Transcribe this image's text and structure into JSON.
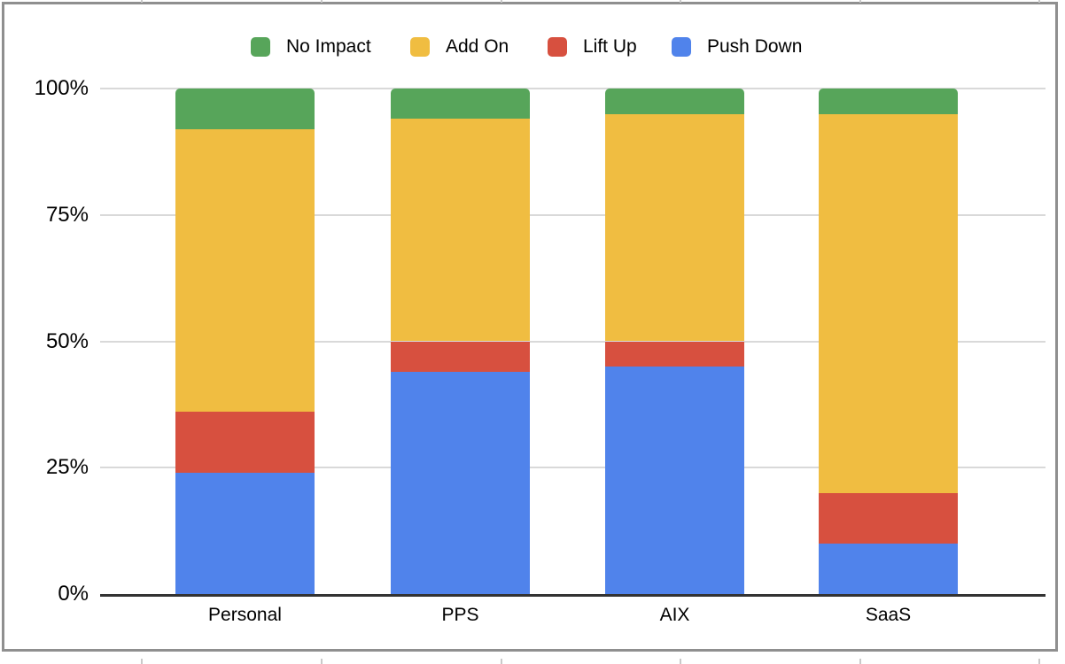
{
  "legend": {
    "items": [
      {
        "label": "No Impact",
        "color": "#57A55A"
      },
      {
        "label": "Add On",
        "color": "#F0BD41"
      },
      {
        "label": "Lift Up",
        "color": "#D7503F"
      },
      {
        "label": "Push Down",
        "color": "#5083EB"
      }
    ]
  },
  "chart_data": {
    "type": "bar",
    "subtype": "100-percent-stacked-column",
    "title": "",
    "xlabel": "",
    "ylabel": "",
    "categories": [
      "Personal",
      "PPS",
      "AIX",
      "SaaS"
    ],
    "series": [
      {
        "name": "Push Down",
        "color": "#5083EB",
        "values": [
          24,
          44,
          45,
          10
        ]
      },
      {
        "name": "Lift Up",
        "color": "#D7503F",
        "values": [
          12,
          6,
          5,
          10
        ]
      },
      {
        "name": "Add On",
        "color": "#F0BD41",
        "values": [
          56,
          44,
          45,
          75
        ]
      },
      {
        "name": "No Impact",
        "color": "#57A55A",
        "values": [
          8,
          6,
          5,
          5
        ]
      }
    ],
    "stack_order_bottom_to_top": [
      "Push Down",
      "Lift Up",
      "Add On",
      "No Impact"
    ],
    "legend_position": "top",
    "grid": true,
    "y_axis": {
      "min": 0,
      "max": 100,
      "unit": "%",
      "ticks": [
        "0%",
        "25%",
        "50%",
        "75%",
        "100%"
      ],
      "tick_values": [
        0,
        25,
        50,
        75,
        100
      ]
    }
  },
  "colors": {
    "background": "#FFFFFF",
    "gridline": "#D9D9D9",
    "axis": "#333333",
    "frame_border": "#8F8F8F",
    "edge_tick": "#C9C9C9",
    "text": "#000000"
  }
}
